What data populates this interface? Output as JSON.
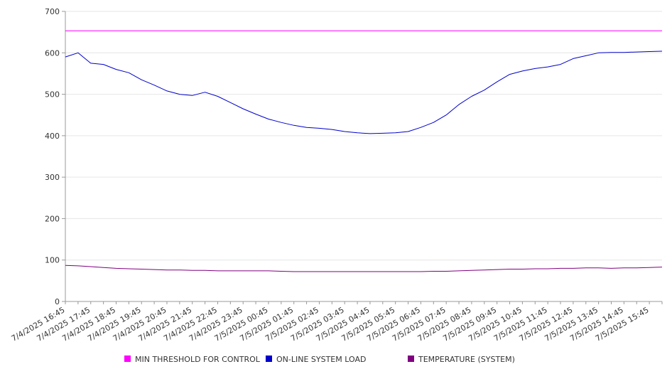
{
  "chart_data": {
    "type": "line",
    "title": "",
    "xlabel": "",
    "ylabel": "",
    "ylim": [
      0,
      700
    ],
    "yticks": [
      0,
      100,
      200,
      300,
      400,
      500,
      600,
      700
    ],
    "grid": true,
    "legend_position": "bottom",
    "x": [
      "7/4/2025 16:45",
      "7/4/2025 17:15",
      "7/4/2025 17:45",
      "7/4/2025 18:15",
      "7/4/2025 18:45",
      "7/4/2025 19:15",
      "7/4/2025 19:45",
      "7/4/2025 20:15",
      "7/4/2025 20:45",
      "7/4/2025 21:15",
      "7/4/2025 21:45",
      "7/4/2025 22:15",
      "7/4/2025 22:45",
      "7/4/2025 23:15",
      "7/4/2025 23:45",
      "7/5/2025 00:15",
      "7/5/2025 00:45",
      "7/5/2025 01:15",
      "7/5/2025 01:45",
      "7/5/2025 02:15",
      "7/5/2025 02:45",
      "7/5/2025 03:15",
      "7/5/2025 03:45",
      "7/5/2025 04:15",
      "7/5/2025 04:45",
      "7/5/2025 05:15",
      "7/5/2025 05:45",
      "7/5/2025 06:15",
      "7/5/2025 06:45",
      "7/5/2025 07:15",
      "7/5/2025 07:45",
      "7/5/2025 08:15",
      "7/5/2025 08:45",
      "7/5/2025 09:15",
      "7/5/2025 09:45",
      "7/5/2025 10:15",
      "7/5/2025 10:45",
      "7/5/2025 11:15",
      "7/5/2025 11:45",
      "7/5/2025 12:15",
      "7/5/2025 12:45",
      "7/5/2025 13:15",
      "7/5/2025 13:45",
      "7/5/2025 14:15",
      "7/5/2025 14:45",
      "7/5/2025 15:15",
      "7/5/2025 15:45",
      "7/5/2025 16:15"
    ],
    "xtick_labels": [
      "7/4/2025 16:45",
      "7/4/2025 17:45",
      "7/4/2025 18:45",
      "7/4/2025 19:45",
      "7/4/2025 20:45",
      "7/4/2025 21:45",
      "7/4/2025 22:45",
      "7/4/2025 23:45",
      "7/5/2025 00:45",
      "7/5/2025 01:45",
      "7/5/2025 02:45",
      "7/5/2025 03:45",
      "7/5/2025 04:45",
      "7/5/2025 05:45",
      "7/5/2025 06:45",
      "7/5/2025 07:45",
      "7/5/2025 08:45",
      "7/5/2025 09:45",
      "7/5/2025 10:45",
      "7/5/2025 11:45",
      "7/5/2025 12:45",
      "7/5/2025 13:45",
      "7/5/2025 14:45",
      "7/5/2025 15:45"
    ],
    "series": [
      {
        "name": "MIN THRESHOLD FOR CONTROL",
        "color": "#ff00ff",
        "values": [
          653,
          653,
          653,
          653,
          653,
          653,
          653,
          653,
          653,
          653,
          653,
          653,
          653,
          653,
          653,
          653,
          653,
          653,
          653,
          653,
          653,
          653,
          653,
          653,
          653,
          653,
          653,
          653,
          653,
          653,
          653,
          653,
          653,
          653,
          653,
          653,
          653,
          653,
          653,
          653,
          653,
          653,
          653,
          653,
          653,
          653,
          653,
          653
        ]
      },
      {
        "name": "ON-LINE SYSTEM LOAD",
        "color": "#0000cc",
        "values": [
          590,
          600,
          575,
          572,
          560,
          552,
          535,
          522,
          508,
          500,
          497,
          505,
          495,
          480,
          465,
          452,
          440,
          432,
          425,
          420,
          418,
          415,
          410,
          407,
          405,
          406,
          407,
          410,
          420,
          432,
          450,
          475,
          495,
          510,
          530,
          548,
          556,
          562,
          566,
          572,
          586,
          593,
          600,
          601,
          601,
          602,
          603,
          604
        ]
      },
      {
        "name": "TEMPERATURE (SYSTEM)",
        "color": "#800080",
        "values": [
          87,
          86,
          84,
          82,
          80,
          79,
          78,
          77,
          76,
          76,
          75,
          75,
          74,
          74,
          74,
          74,
          74,
          73,
          72,
          72,
          72,
          72,
          72,
          72,
          72,
          72,
          72,
          72,
          72,
          73,
          73,
          74,
          75,
          76,
          77,
          78,
          78,
          79,
          79,
          80,
          80,
          81,
          81,
          80,
          81,
          81,
          82,
          83
        ]
      }
    ]
  }
}
